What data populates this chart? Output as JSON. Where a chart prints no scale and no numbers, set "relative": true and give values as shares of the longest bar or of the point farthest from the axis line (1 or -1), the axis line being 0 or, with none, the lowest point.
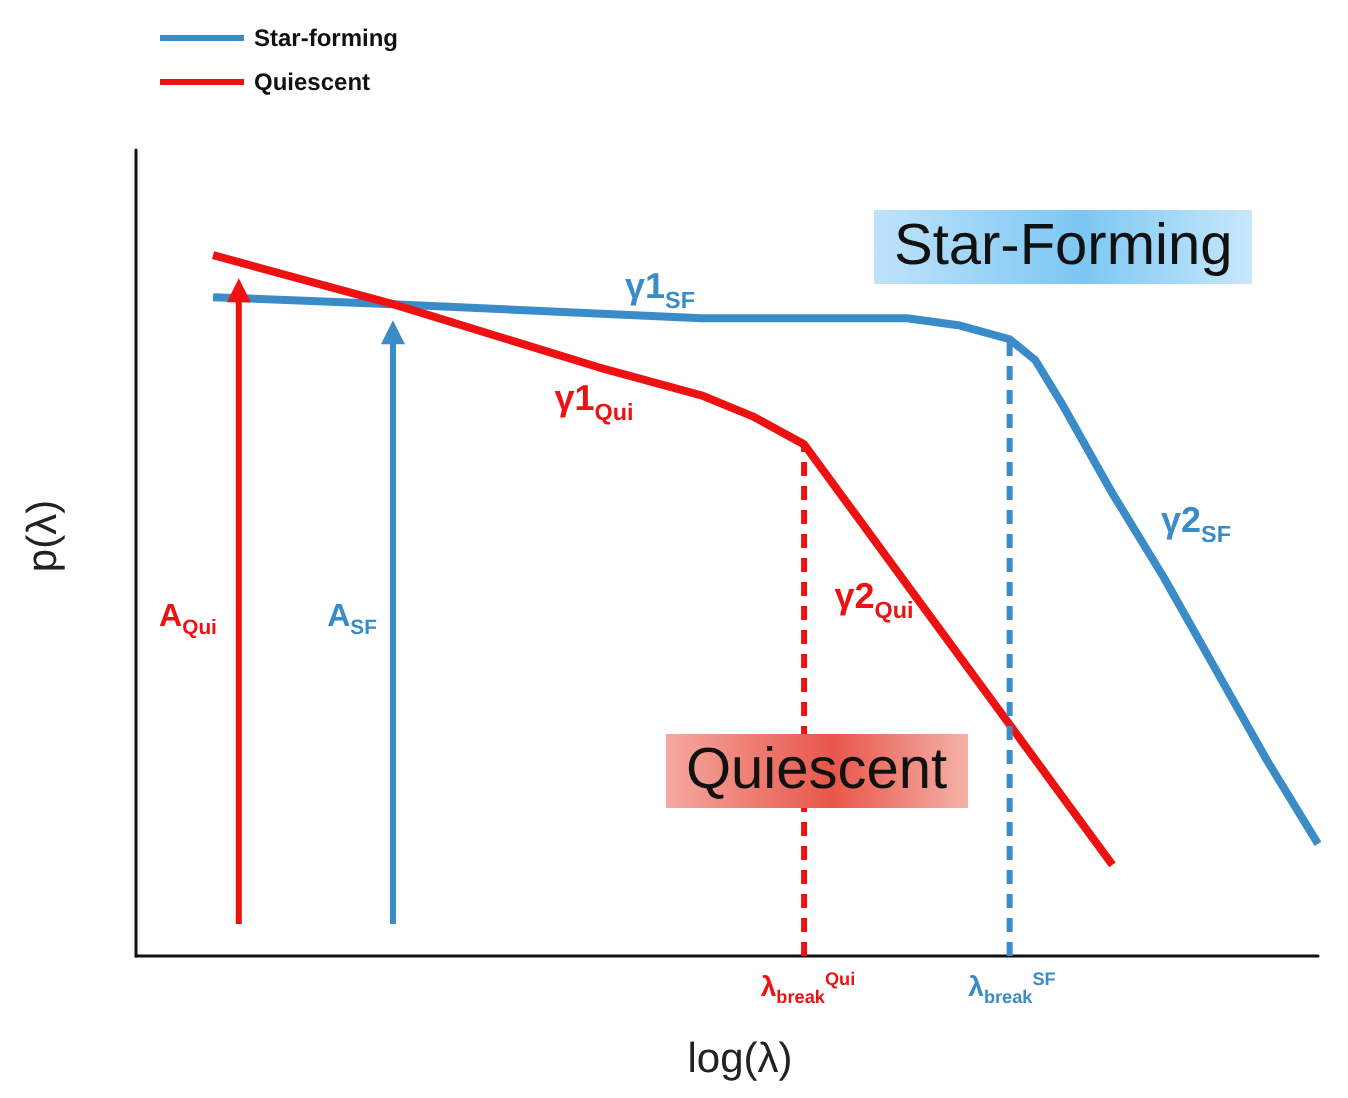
{
  "chart_data": {
    "type": "line",
    "relative": true,
    "xlabel": "log(λ)",
    "ylabel": "p(λ)",
    "legend": "top left",
    "grid": false,
    "marker": "none",
    "categories": [
      null,
      null,
      null,
      null,
      null,
      null,
      null,
      null,
      null,
      null,
      null,
      null,
      null,
      null,
      null,
      null,
      null,
      null,
      null,
      null,
      null,
      null,
      null,
      null,
      null,
      null,
      null,
      null,
      null,
      null,
      null,
      null,
      null,
      null,
      null,
      null,
      null,
      null,
      null,
      null,
      null,
      null,
      null,
      null,
      null,
      null,
      null
    ],
    "series": [
      {
        "name": "Star-forming",
        "color": "#3a8cc8",
        "values": [
          null,
          null,
          null,
          0.94,
          null,
          null,
          null,
          null,
          null,
          null,
          0.93,
          null,
          null,
          null,
          null,
          null,
          null,
          null,
          null,
          null,
          null,
          null,
          0.91,
          null,
          null,
          null,
          null,
          null,
          null,
          null,
          0.91,
          null,
          0.9,
          null,
          0.88,
          0.85,
          0.79,
          null,
          0.66,
          null,
          0.54,
          null,
          0.41,
          null,
          0.28,
          null,
          0.16
        ]
      },
      {
        "name": "Quiescent",
        "color": "#ee1111",
        "values": [
          null,
          null,
          null,
          1.0,
          0.99,
          null,
          null,
          null,
          null,
          null,
          0.93,
          null,
          null,
          null,
          null,
          null,
          null,
          null,
          0.84,
          null,
          null,
          null,
          0.8,
          null,
          0.77,
          null,
          0.73,
          null,
          0.63,
          null,
          0.53,
          null,
          0.43,
          null,
          0.33,
          null,
          0.23,
          null,
          0.13,
          null,
          null,
          null,
          null,
          null,
          null,
          null,
          null
        ]
      }
    ],
    "annotations": [
      "γ1$_{SF}$",
      "γ1$_{Qui}$",
      "γ2$_{Qui}$",
      "γ2$_{SF}$",
      "Star-Forming",
      "Quiescent",
      "A$_{Qui}$",
      "A$_{SF}$",
      "λ$_{break}$$^{Qui}$",
      "λ$_{break}$$^{SF}$"
    ]
  }
}
